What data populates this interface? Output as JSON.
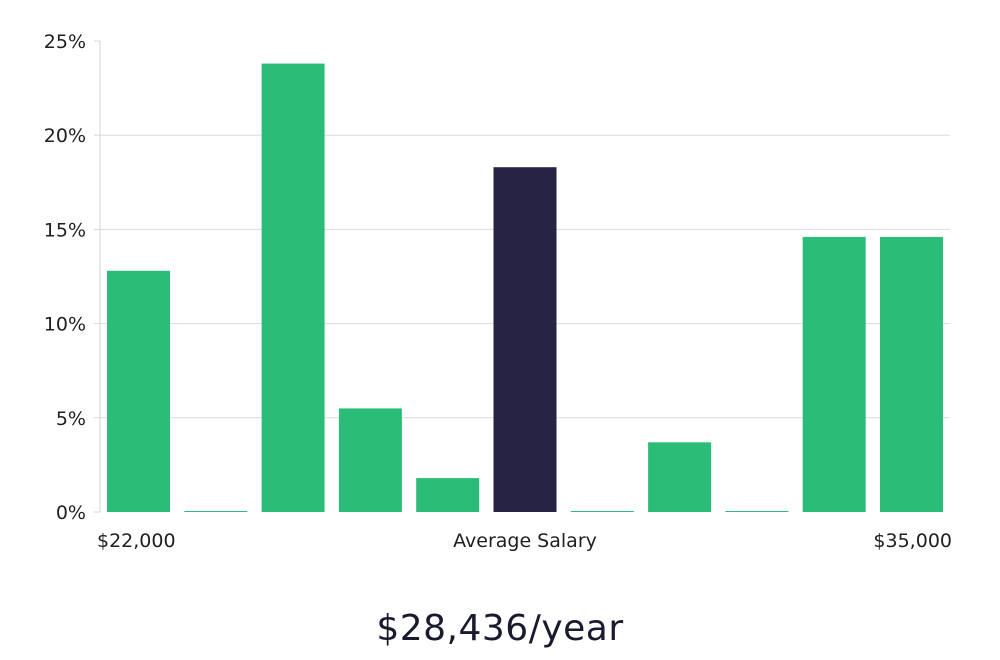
{
  "chart_data": {
    "type": "bar",
    "title": "",
    "xlabel": "Average Salary",
    "ylabel": "",
    "x_range_labels": {
      "min": "$22,000",
      "max": "$35,000"
    },
    "ylim": [
      0,
      25
    ],
    "yticks": [
      0,
      5,
      10,
      15,
      20,
      25
    ],
    "ytick_labels": [
      "0%",
      "5%",
      "10%",
      "15%",
      "20%",
      "25%"
    ],
    "grid": true,
    "values": [
      12.8,
      0,
      23.8,
      5.5,
      1.8,
      18.3,
      0,
      3.7,
      0,
      14.6,
      14.6
    ],
    "highlight_index": 5,
    "colors": {
      "bar": "#2bbd77",
      "highlight": "#262345",
      "grid": "#dcdcdc",
      "text": "#1f1f1f"
    }
  },
  "summary": {
    "salary": "$28,436/year"
  }
}
